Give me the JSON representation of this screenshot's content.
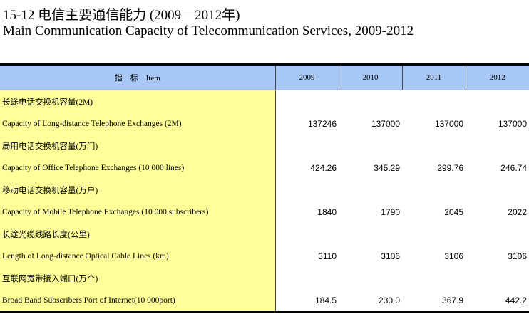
{
  "title": {
    "cn": "15-12  电信主要通信能力 (2009—2012年)",
    "en": "Main Communication Capacity of Telecommunication Services, 2009-2012"
  },
  "table": {
    "header": {
      "indicator": "指　标　Item",
      "years": [
        "2009",
        "2010",
        "2011",
        "2012"
      ]
    },
    "rows": [
      {
        "cn": "长途电话交换机容量(2M)",
        "en": "Capacity of Long-distance Telephone Exchanges (2M)",
        "values": [
          "137246",
          "137000",
          "137000",
          "137000"
        ]
      },
      {
        "cn": "局用电话交换机容量(万门)",
        "en": "Capacity of Office Telephone Exchanges (10 000 lines)",
        "values": [
          "424.26",
          "345.29",
          "299.76",
          "246.74"
        ]
      },
      {
        "cn": "移动电话交换机容量(万户)",
        "en": "Capacity of Mobile Telephone Exchanges (10 000 subscribers)",
        "values": [
          "1840",
          "1790",
          "2045",
          "2022"
        ]
      },
      {
        "cn": "长途光缆线路长度(公里)",
        "en": "Length of Long-distance Optical Cable Lines (km)",
        "values": [
          "3110",
          "3106",
          "3106",
          "3106"
        ]
      },
      {
        "cn": "互联网宽带接入端口(万个)",
        "en": "Broad Band Subscribers Port of Internet(10 000port)",
        "values": [
          "184.5",
          "230.0",
          "367.9",
          "442.2"
        ]
      }
    ]
  }
}
